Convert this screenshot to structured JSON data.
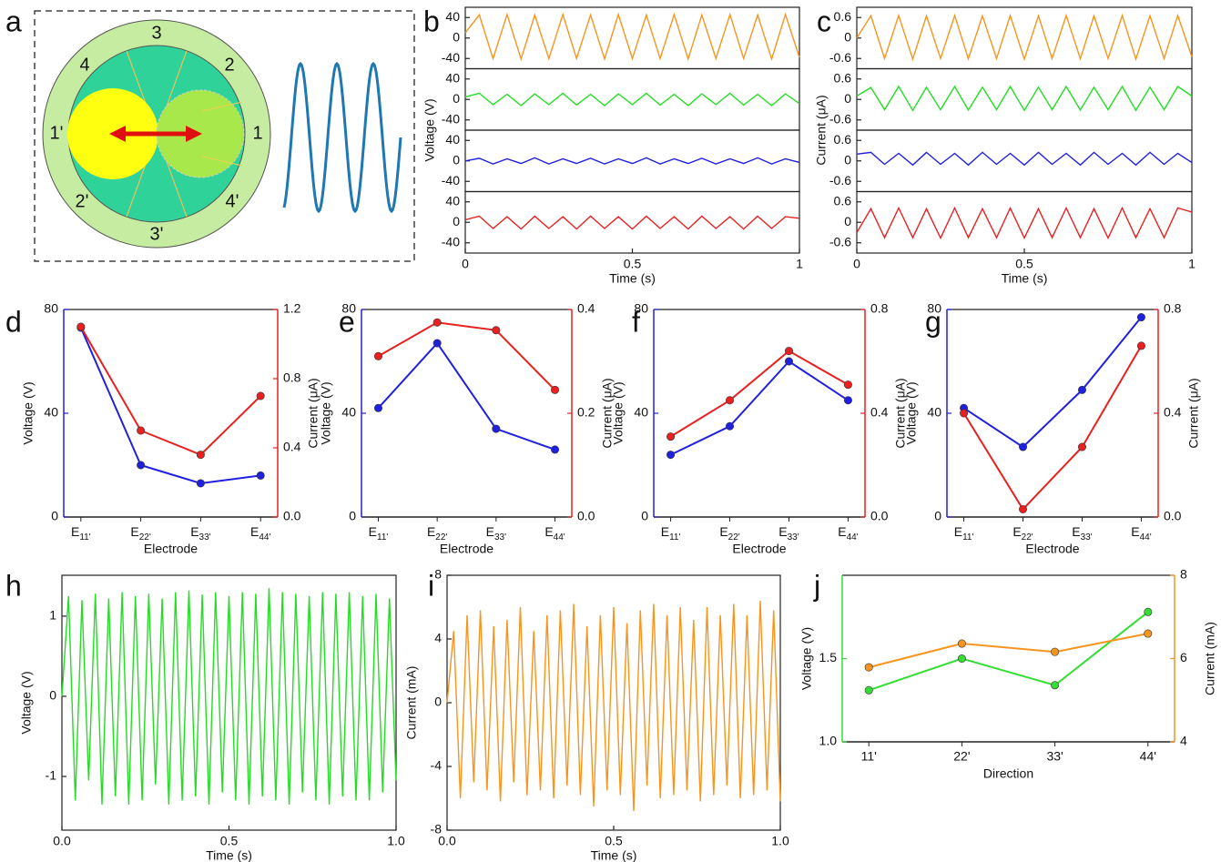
{
  "diagram": {
    "label": "a",
    "numbers": [
      "3",
      "2",
      "4",
      "1'",
      "1",
      "2'",
      "4'",
      "3'"
    ]
  },
  "chart_data": [
    {
      "label": "b",
      "type": "line",
      "xlabel": "Time (s)",
      "ylabel": "Voltage (V)",
      "x": [
        0,
        0.042,
        0.083,
        0.125,
        0.167,
        0.208,
        0.25,
        0.292,
        0.333,
        0.375,
        0.417,
        0.458,
        0.5,
        0.542,
        0.583,
        0.625,
        0.667,
        0.708,
        0.75,
        0.792,
        0.833,
        0.875,
        0.917,
        0.958,
        1
      ],
      "xlim": [
        0,
        1
      ],
      "xticks": [
        0,
        0.5,
        1
      ],
      "series": [
        {
          "color": "#f7941d",
          "ylim": [
            -60,
            60
          ],
          "yticks": [
            40,
            0,
            -40
          ],
          "values": [
            10,
            45,
            -40,
            46,
            -41,
            45,
            -40,
            46,
            -40,
            45,
            -41,
            46,
            -40,
            45,
            -40,
            46,
            -41,
            45,
            -40,
            46,
            -40,
            45,
            -41,
            46,
            -38
          ]
        },
        {
          "color": "#22dd22",
          "ylim": [
            -60,
            60
          ],
          "yticks": [
            40,
            0,
            -40
          ],
          "values": [
            5,
            12,
            -10,
            10,
            -12,
            11,
            -10,
            12,
            -11,
            10,
            -12,
            11,
            -10,
            12,
            -11,
            10,
            -12,
            11,
            -10,
            12,
            -11,
            10,
            -12,
            11,
            -8
          ]
        },
        {
          "color": "#2020e0",
          "ylim": [
            -60,
            60
          ],
          "yticks": [
            40,
            0,
            -40
          ],
          "values": [
            0,
            5,
            -6,
            4,
            -5,
            6,
            -6,
            4,
            -5,
            5,
            -6,
            4,
            -5,
            6,
            -6,
            4,
            -5,
            5,
            -6,
            4,
            -5,
            6,
            -6,
            4,
            -3
          ]
        },
        {
          "color": "#e82020",
          "ylim": [
            -60,
            60
          ],
          "yticks": [
            40,
            0,
            -40
          ],
          "values": [
            5,
            12,
            -12,
            11,
            -13,
            12,
            -12,
            11,
            -13,
            12,
            -12,
            11,
            -13,
            12,
            -12,
            11,
            -13,
            12,
            -12,
            11,
            -13,
            12,
            -12,
            11,
            8
          ]
        }
      ]
    },
    {
      "label": "c",
      "type": "line",
      "xlabel": "Time (s)",
      "ylabel": "Current (μA)",
      "x": [
        0,
        0.042,
        0.083,
        0.125,
        0.167,
        0.208,
        0.25,
        0.292,
        0.333,
        0.375,
        0.417,
        0.458,
        0.5,
        0.542,
        0.583,
        0.625,
        0.667,
        0.708,
        0.75,
        0.792,
        0.833,
        0.875,
        0.917,
        0.958,
        1
      ],
      "xlim": [
        0,
        1
      ],
      "xticks": [
        0,
        0.5,
        1
      ],
      "series": [
        {
          "color": "#f7941d",
          "ylim": [
            -0.9,
            0.9
          ],
          "yticks": [
            0.6,
            0,
            -0.6
          ],
          "values": [
            0,
            0.65,
            -0.6,
            0.66,
            -0.62,
            0.65,
            -0.6,
            0.66,
            -0.61,
            0.65,
            -0.6,
            0.66,
            -0.62,
            0.65,
            -0.6,
            0.66,
            -0.61,
            0.65,
            -0.6,
            0.66,
            -0.62,
            0.65,
            -0.6,
            0.66,
            -0.55
          ]
        },
        {
          "color": "#22dd22",
          "ylim": [
            -0.9,
            0.9
          ],
          "yticks": [
            0.6,
            0,
            -0.6
          ],
          "values": [
            0.1,
            0.35,
            -0.3,
            0.38,
            -0.32,
            0.36,
            -0.3,
            0.38,
            -0.31,
            0.36,
            -0.3,
            0.38,
            -0.32,
            0.36,
            -0.3,
            0.38,
            -0.31,
            0.36,
            -0.3,
            0.38,
            -0.32,
            0.36,
            -0.3,
            0.38,
            0.1
          ]
        },
        {
          "color": "#2020e0",
          "ylim": [
            -0.9,
            0.9
          ],
          "yticks": [
            0.6,
            0,
            -0.6
          ],
          "values": [
            0.2,
            0.25,
            -0.1,
            0.22,
            -0.12,
            0.25,
            -0.1,
            0.22,
            -0.12,
            0.25,
            -0.1,
            0.22,
            -0.12,
            0.25,
            -0.1,
            0.22,
            -0.12,
            0.25,
            -0.1,
            0.22,
            -0.12,
            0.25,
            -0.1,
            0.22,
            -0.05
          ]
        },
        {
          "color": "#e82020",
          "ylim": [
            -0.9,
            0.9
          ],
          "yticks": [
            0.6,
            0,
            -0.6
          ],
          "values": [
            -0.3,
            0.4,
            -0.45,
            0.42,
            -0.45,
            0.4,
            -0.46,
            0.42,
            -0.45,
            0.4,
            -0.45,
            0.42,
            -0.46,
            0.4,
            -0.45,
            0.42,
            -0.45,
            0.4,
            -0.46,
            0.42,
            -0.45,
            0.4,
            -0.45,
            0.42,
            0.3
          ]
        }
      ]
    },
    {
      "label": "d",
      "type": "line",
      "xlabel": "Electrode",
      "ylabel": "Voltage (V)",
      "y2label": "Current (μA)",
      "categories": [
        "E11'",
        "E22'",
        "E33'",
        "E44'"
      ],
      "ylim": [
        0,
        80
      ],
      "yticks": [
        0,
        40,
        80
      ],
      "y2lim": [
        0,
        1.2
      ],
      "y2ticks": [
        {
          "value": 0,
          "label": "0.0"
        },
        {
          "value": 0.4,
          "label": "0.4"
        },
        {
          "value": 0.8,
          "label": "0.8"
        },
        {
          "value": 1.2,
          "label": "1.2"
        }
      ],
      "series": [
        {
          "color": "#2020e0",
          "values": [
            73,
            20,
            13,
            16
          ]
        },
        {
          "color": "#e82020",
          "axis": "y2",
          "values": [
            1.1,
            0.5,
            0.36,
            0.7
          ]
        }
      ]
    },
    {
      "label": "e",
      "type": "line",
      "xlabel": "Electrode",
      "ylabel": "Voltage (V)",
      "y2label": "Current (μA)",
      "categories": [
        "E11'",
        "E22'",
        "E33'",
        "E44'"
      ],
      "ylim": [
        0,
        80
      ],
      "yticks": [
        0,
        40,
        80
      ],
      "y2lim": [
        0,
        0.4
      ],
      "y2ticks": [
        {
          "value": 0,
          "label": "0.0"
        },
        {
          "value": 0.2,
          "label": "0.2"
        },
        {
          "value": 0.4,
          "label": "0.4"
        }
      ],
      "series": [
        {
          "color": "#2020e0",
          "values": [
            42,
            67,
            34,
            26
          ]
        },
        {
          "color": "#e82020",
          "axis": "y2",
          "values": [
            0.31,
            0.375,
            0.36,
            0.245
          ]
        }
      ]
    },
    {
      "label": "f",
      "type": "line",
      "xlabel": "Electrode",
      "ylabel": "Voltage (V)",
      "y2label": "Current (μA)",
      "categories": [
        "E11'",
        "E22'",
        "E33'",
        "E44'"
      ],
      "ylim": [
        0,
        80
      ],
      "yticks": [
        0,
        40,
        80
      ],
      "y2lim": [
        0,
        0.8
      ],
      "y2ticks": [
        {
          "value": 0,
          "label": "0.0"
        },
        {
          "value": 0.4,
          "label": "0.4"
        },
        {
          "value": 0.8,
          "label": "0.8"
        }
      ],
      "series": [
        {
          "color": "#2020e0",
          "values": [
            24,
            35,
            60,
            45
          ]
        },
        {
          "color": "#e82020",
          "axis": "y2",
          "values": [
            0.31,
            0.45,
            0.64,
            0.51
          ]
        }
      ]
    },
    {
      "label": "g",
      "type": "line",
      "xlabel": "Electrode",
      "ylabel": "Voltage (V)",
      "y2label": "Current (μA)",
      "categories": [
        "E11'",
        "E22'",
        "E33'",
        "E44'"
      ],
      "ylim": [
        0,
        80
      ],
      "yticks": [
        0,
        40,
        80
      ],
      "y2lim": [
        0,
        0.8
      ],
      "y2ticks": [
        {
          "value": 0,
          "label": "0.0"
        },
        {
          "value": 0.4,
          "label": "0.4"
        },
        {
          "value": 0.8,
          "label": "0.8"
        }
      ],
      "series": [
        {
          "color": "#2020e0",
          "values": [
            42,
            27,
            49,
            77
          ]
        },
        {
          "color": "#e82020",
          "axis": "y2",
          "values": [
            0.4,
            0.03,
            0.27,
            0.66
          ]
        }
      ]
    },
    {
      "label": "h",
      "type": "line",
      "xlabel": "Time (s)",
      "ylabel": "Voltage (V)",
      "x": [
        0,
        0.02,
        0.04,
        0.06,
        0.08,
        0.1,
        0.12,
        0.14,
        0.16,
        0.18,
        0.2,
        0.22,
        0.24,
        0.26,
        0.28,
        0.3,
        0.32,
        0.34,
        0.36,
        0.38,
        0.4,
        0.42,
        0.44,
        0.46,
        0.48,
        0.5,
        0.52,
        0.54,
        0.56,
        0.58,
        0.6,
        0.62,
        0.64,
        0.66,
        0.68,
        0.7,
        0.72,
        0.74,
        0.76,
        0.78,
        0.8,
        0.82,
        0.84,
        0.86,
        0.88,
        0.9,
        0.92,
        0.94,
        0.96,
        0.98,
        1
      ],
      "xlim": [
        0,
        1
      ],
      "xticks": [
        {
          "value": 0,
          "label": "0.0"
        },
        {
          "value": 0.5,
          "label": "0.5"
        },
        {
          "value": 1,
          "label": "1.0"
        }
      ],
      "ylim": [
        -1.67,
        1.51
      ],
      "yticks": [
        -1,
        0,
        1
      ],
      "series": [
        {
          "color": "#22dd22",
          "values": [
            0,
            1.25,
            -1.3,
            1.2,
            -1.05,
            1.28,
            -1.35,
            1.22,
            -1.25,
            1.3,
            -1.35,
            1.25,
            -1.3,
            1.28,
            -1.1,
            1.22,
            -1.35,
            1.3,
            -1.3,
            1.32,
            -1.25,
            1.27,
            -1.35,
            1.3,
            -1.2,
            1.25,
            -1.3,
            1.3,
            -1.35,
            1.28,
            -1.25,
            1.35,
            -1.3,
            1.3,
            -1.35,
            1.28,
            -1.2,
            1.25,
            -1.3,
            1.3,
            -1.35,
            1.28,
            -1.25,
            1.3,
            -1.3,
            1.25,
            -1.3,
            1.28,
            -1.2,
            1.22,
            -1.05
          ]
        }
      ]
    },
    {
      "label": "i",
      "type": "line",
      "xlabel": "Time (s)",
      "ylabel": "Current (mA)",
      "x": [
        0,
        0.02,
        0.04,
        0.06,
        0.08,
        0.1,
        0.12,
        0.14,
        0.16,
        0.18,
        0.2,
        0.22,
        0.24,
        0.26,
        0.28,
        0.3,
        0.32,
        0.34,
        0.36,
        0.38,
        0.4,
        0.42,
        0.44,
        0.46,
        0.48,
        0.5,
        0.52,
        0.54,
        0.56,
        0.58,
        0.6,
        0.62,
        0.64,
        0.66,
        0.68,
        0.7,
        0.72,
        0.74,
        0.76,
        0.78,
        0.8,
        0.82,
        0.84,
        0.86,
        0.88,
        0.9,
        0.92,
        0.94,
        0.96,
        0.98,
        1
      ],
      "xlim": [
        0,
        1
      ],
      "xticks": [
        {
          "value": 0,
          "label": "0.0"
        },
        {
          "value": 0.5,
          "label": "0.5"
        },
        {
          "value": 1,
          "label": "1.0"
        }
      ],
      "ylim": [
        -8,
        8
      ],
      "yticks": [
        -8,
        -4,
        0,
        4,
        8
      ],
      "series": [
        {
          "color": "#f7941d",
          "values": [
            0,
            4.5,
            -6,
            5.5,
            -5,
            5.8,
            -5.5,
            4.8,
            -6.2,
            5.2,
            -5,
            6,
            -5.8,
            4.5,
            -5.5,
            5.5,
            -6,
            5.8,
            -5.2,
            6.2,
            -5.8,
            4.8,
            -6.5,
            5.5,
            -5.5,
            6,
            -5.8,
            5,
            -6.8,
            5.8,
            -5.2,
            6.2,
            -6,
            5.5,
            -5.8,
            6,
            -5.5,
            5.2,
            -6.2,
            6,
            -5.8,
            5.5,
            -5.2,
            6.2,
            -6,
            5.5,
            -5.8,
            6.4,
            -5.5,
            5.8,
            -6.2
          ]
        }
      ]
    },
    {
      "label": "j",
      "type": "line",
      "xlabel": "Direction",
      "ylabel": "Voltage (V)",
      "y2label": "Current (mA)",
      "categories": [
        "11'",
        "22'",
        "33'",
        "44'"
      ],
      "ylim": [
        1.0,
        2.0
      ],
      "yticks": [
        {
          "value": 1.0,
          "label": "1.0"
        },
        1.5
      ],
      "y2lim": [
        4,
        8
      ],
      "y2ticks": [
        4,
        6,
        8
      ],
      "series": [
        {
          "color": "#33dd33",
          "values": [
            1.31,
            1.5,
            1.34,
            1.78
          ]
        },
        {
          "color": "#f7941d",
          "axis": "y2",
          "values": [
            5.79,
            6.36,
            6.16,
            6.6
          ]
        }
      ]
    }
  ]
}
